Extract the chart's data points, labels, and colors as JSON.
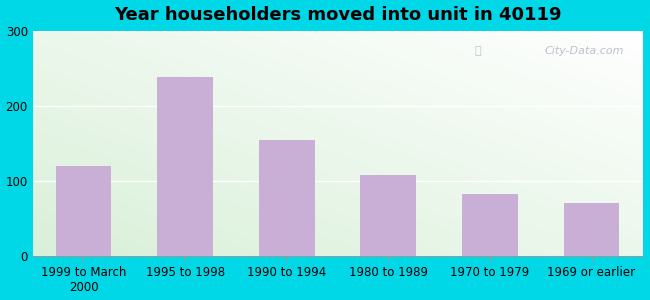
{
  "title": "Year householders moved into unit in 40119",
  "categories": [
    "1999 to March\n2000",
    "1995 to 1998",
    "1990 to 1994",
    "1980 to 1989",
    "1970 to 1979",
    "1969 or earlier"
  ],
  "values": [
    120,
    238,
    155,
    108,
    83,
    70
  ],
  "bar_color": "#c9aed6",
  "ylim": [
    0,
    300
  ],
  "yticks": [
    0,
    100,
    200,
    300
  ],
  "background_outer": "#00d8e8",
  "title_fontsize": 13,
  "tick_fontsize": 8.5,
  "watermark": "City-Data.com"
}
